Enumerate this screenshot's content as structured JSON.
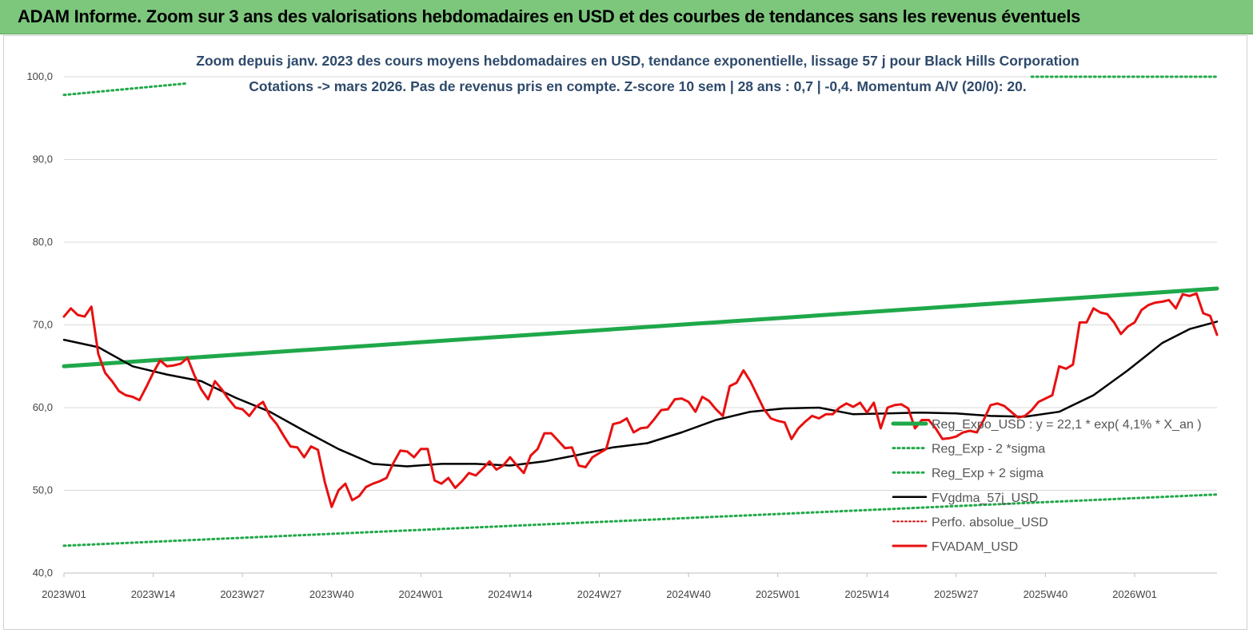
{
  "header": {
    "title": "ADAM Informe. Zoom sur 3 ans des valorisations hebdomadaires en USD et des courbes de tendances sans les revenus éventuels"
  },
  "chart_data": {
    "type": "line",
    "title": "Zoom depuis janv. 2023 des cours moyens hebdomadaires en USD, tendance exponentielle, lissage 57 j pour Black Hills Corporation",
    "subtitle": "Cotations -> mars 2026. Pas de revenus pris en compte. Z-score 10 sem | 28 ans : 0,7 | -0,4. Momentum A/V (20/0): 20.",
    "ylim": [
      40,
      100
    ],
    "y_ticks": [
      "40,0",
      "50,0",
      "60,0",
      "70,0",
      "80,0",
      "90,0",
      "100,0"
    ],
    "x_ticks": [
      "2023W01",
      "2023W14",
      "2023W27",
      "2023W40",
      "2024W01",
      "2024W14",
      "2024W27",
      "2024W40",
      "2025W01",
      "2025W14",
      "2025W27",
      "2025W40",
      "2026W01"
    ],
    "n_weeks": 169,
    "grid": "horizontal",
    "legend_position": "bottom-right",
    "colors": {
      "trend": "#1fa84a",
      "band": "#22a84a",
      "smooth": "#000000",
      "price": "#e81010",
      "perf": "#d01010"
    },
    "series": [
      {
        "name": "Reg_Expo_USD : y = 22,1 * exp( 4,1% *  X_an )",
        "style": "thick-green",
        "x": [
          0,
          168
        ],
        "values": [
          65.0,
          74.4
        ]
      },
      {
        "name": "Reg_Exp - 2 *sigma",
        "style": "dotted-green",
        "x": [
          0,
          168
        ],
        "values": [
          43.3,
          49.5
        ]
      },
      {
        "name": "Reg_Exp + 2 sigma",
        "style": "dotted-green",
        "x": [
          0,
          18,
          141,
          168
        ],
        "values": [
          97.8,
          99.2,
          100.0,
          100.0
        ]
      },
      {
        "name": "FVgdma_57j_USD",
        "style": "black",
        "x": [
          0,
          5,
          10,
          15,
          20,
          25,
          30,
          35,
          40,
          45,
          50,
          55,
          60,
          65,
          70,
          75,
          80,
          85,
          90,
          95,
          100,
          105,
          110,
          115,
          120,
          125,
          130,
          135,
          140,
          145,
          150,
          155,
          160,
          164,
          168
        ],
        "values": [
          68.2,
          67.3,
          65.0,
          64.0,
          63.2,
          61.2,
          59.5,
          57.2,
          55.0,
          53.2,
          52.9,
          53.2,
          53.2,
          53.0,
          53.5,
          54.3,
          55.2,
          55.7,
          57.0,
          58.5,
          59.5,
          59.9,
          60.0,
          59.2,
          59.3,
          59.4,
          59.3,
          59.0,
          58.9,
          59.5,
          61.5,
          64.5,
          67.8,
          69.5,
          70.4
        ]
      },
      {
        "name": "Perfo. absolue_USD",
        "style": "dotted-red",
        "x": [],
        "values": []
      },
      {
        "name": "FVADAM_USD",
        "style": "red",
        "x": [
          0,
          1,
          2,
          3,
          4,
          5,
          6,
          7,
          8,
          9,
          10,
          11,
          12,
          13,
          14,
          15,
          16,
          17,
          18,
          19,
          20,
          21,
          22,
          23,
          24,
          25,
          26,
          27,
          28,
          29,
          30,
          31,
          32,
          33,
          34,
          35,
          36,
          37,
          38,
          39,
          40,
          41,
          42,
          43,
          44,
          45,
          46,
          47,
          48,
          49,
          50,
          51,
          52,
          53,
          54,
          55,
          56,
          57,
          58,
          59,
          60,
          61,
          62,
          63,
          64,
          65,
          66,
          67,
          68,
          69,
          70,
          71,
          72,
          73,
          74,
          75,
          76,
          77,
          78,
          79,
          80,
          81,
          82,
          83,
          84,
          85,
          86,
          87,
          88,
          89,
          90,
          91,
          92,
          93,
          94,
          95,
          96,
          97,
          98,
          99,
          100,
          101,
          102,
          103,
          104,
          105,
          106,
          107,
          108,
          109,
          110,
          111,
          112,
          113,
          114,
          115,
          116,
          117,
          118,
          119,
          120,
          121,
          122,
          123,
          124,
          125,
          126,
          127,
          128,
          129,
          130,
          131,
          132,
          133,
          134,
          135,
          136,
          137,
          138,
          139,
          140,
          141,
          142,
          143,
          144,
          145,
          146,
          147,
          148,
          149,
          150,
          151,
          152,
          153,
          154,
          155,
          156,
          157,
          158,
          159,
          160,
          161,
          162,
          163,
          164,
          165,
          166,
          167,
          168
        ],
        "values": [
          71.0,
          72.0,
          71.2,
          71.0,
          72.2,
          66.5,
          64.2,
          63.2,
          62.0,
          61.5,
          61.3,
          60.9,
          62.5,
          64.2,
          65.7,
          65.0,
          65.1,
          65.3,
          66.0,
          63.9,
          62.2,
          61.0,
          63.2,
          62.2,
          61.0,
          60.0,
          59.8,
          59.0,
          60.1,
          60.7,
          59.0,
          58.0,
          56.6,
          55.3,
          55.2,
          54.0,
          55.3,
          54.9,
          51.0,
          48.0,
          50.0,
          50.8,
          48.8,
          49.3,
          50.4,
          50.8,
          51.1,
          51.5,
          53.3,
          54.8,
          54.7,
          54.0,
          55.0,
          55.0,
          51.2,
          50.8,
          51.5,
          50.3,
          51.1,
          52.1,
          51.8,
          52.6,
          53.5,
          52.5,
          53.0,
          54.0,
          53.0,
          52.1,
          54.2,
          55.0,
          56.9,
          56.9,
          56.0,
          55.1,
          55.2,
          53.0,
          52.8,
          54.0,
          54.5,
          55.0,
          58.0,
          58.2,
          58.7,
          57.0,
          57.5,
          57.6,
          58.6,
          59.7,
          59.8,
          61.0,
          61.1,
          60.7,
          59.5,
          61.3,
          60.8,
          59.8,
          59.0,
          62.6,
          63.0,
          64.5,
          63.2,
          61.5,
          59.8,
          58.7,
          58.4,
          58.2,
          56.2,
          57.5,
          58.3,
          59.0,
          58.7,
          59.2,
          59.2,
          60.0,
          60.5,
          60.1,
          60.6,
          59.4,
          60.6,
          57.5,
          60.0,
          60.3,
          60.4,
          59.9,
          57.5,
          58.5,
          58.5,
          57.5,
          56.2,
          56.3,
          56.5,
          57.0,
          57.2,
          57.0,
          58.5,
          60.3,
          60.5,
          60.2,
          59.5,
          58.8,
          59.0,
          59.7,
          60.7,
          61.1,
          61.5,
          65.0,
          64.7,
          65.2,
          70.3,
          70.3,
          72.0,
          71.5,
          71.3,
          70.3,
          68.9,
          69.8,
          70.3,
          71.8,
          72.4,
          72.7,
          72.8,
          73.0,
          72.0,
          73.7,
          73.5,
          73.8,
          71.4,
          71.1,
          68.8
        ]
      }
    ]
  }
}
